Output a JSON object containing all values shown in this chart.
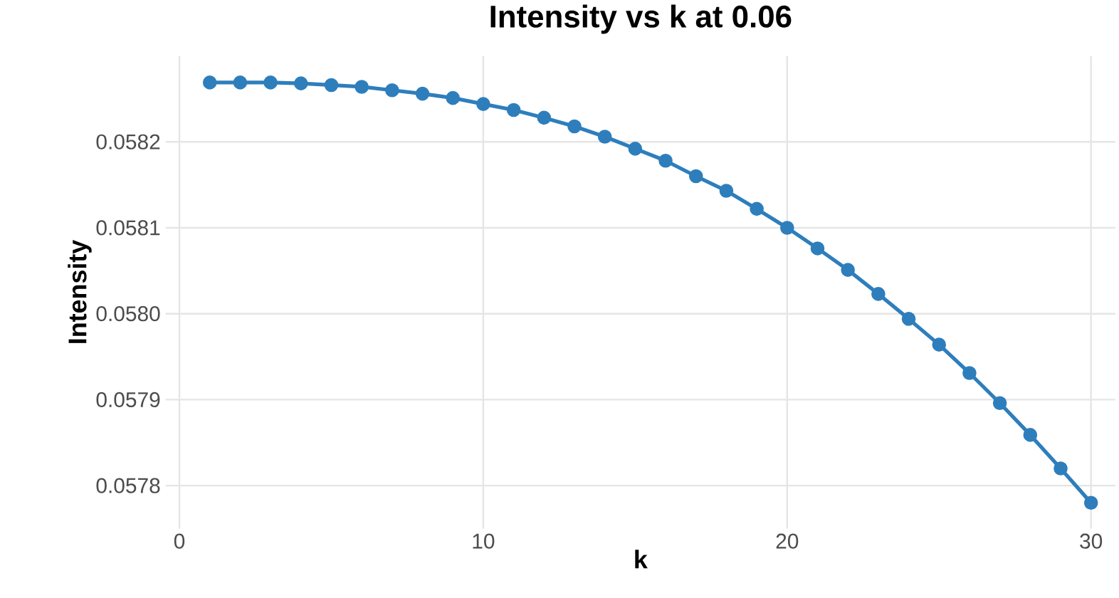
{
  "chart_data": {
    "type": "line",
    "title": "Intensity vs k at 0.06",
    "xlabel": "k",
    "ylabel": "Intensity",
    "x": [
      1,
      2,
      3,
      4,
      5,
      6,
      7,
      8,
      9,
      10,
      11,
      12,
      13,
      14,
      15,
      16,
      17,
      18,
      19,
      20,
      21,
      22,
      23,
      24,
      25,
      26,
      27,
      28,
      29,
      30
    ],
    "series": [
      {
        "color": "#2e7ebc",
        "values": [
          0.058269,
          0.058269,
          0.058269,
          0.058268,
          0.058266,
          0.058264,
          0.05826,
          0.058256,
          0.058251,
          0.058244,
          0.058237,
          0.058228,
          0.058218,
          0.058206,
          0.058192,
          0.058178,
          0.05816,
          0.058143,
          0.058122,
          0.0581,
          0.058076,
          0.058051,
          0.058023,
          0.057994,
          0.057964,
          0.057931,
          0.057896,
          0.057859,
          0.05782,
          0.05778
        ]
      }
    ],
    "xlim": [
      -0.45,
      30.8
    ],
    "ylim": [
      0.05775,
      0.0583
    ],
    "xticks": [
      0,
      10,
      20,
      30
    ],
    "yticks": [
      0.0578,
      0.0579,
      {
        "value": 0.058,
        "label": "0.0580"
      },
      0.0581,
      0.0582
    ],
    "grid": true,
    "marker": "circle",
    "line_style": "solid"
  }
}
